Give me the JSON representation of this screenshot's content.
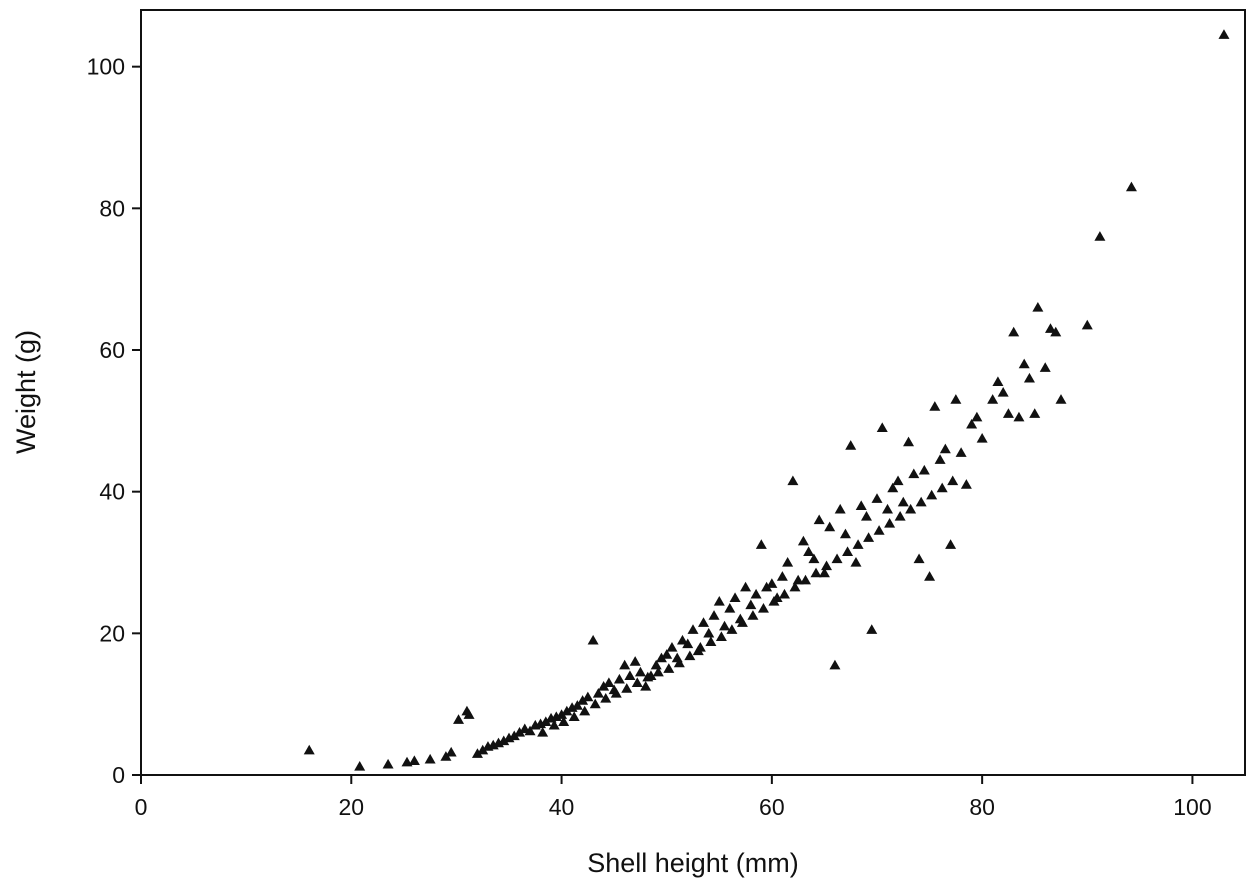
{
  "chart_data": {
    "type": "scatter",
    "title": "",
    "xlabel": "Shell height (mm)",
    "ylabel": "Weight (g)",
    "xlim": [
      0,
      105
    ],
    "ylim": [
      0,
      108
    ],
    "x_ticks": [
      "0",
      "20",
      "40",
      "60",
      "80",
      "100"
    ],
    "y_ticks": [
      "0",
      "20",
      "40",
      "60",
      "80",
      "100"
    ],
    "grid": false,
    "marker": "triangle",
    "marker_color": "#111111",
    "series": [
      {
        "points": [
          [
            16,
            3.5
          ],
          [
            20.8,
            1.2
          ],
          [
            23.5,
            1.5
          ],
          [
            25.3,
            1.8
          ],
          [
            26,
            2.0
          ],
          [
            27.5,
            2.2
          ],
          [
            29,
            2.6
          ],
          [
            29.5,
            3.2
          ],
          [
            30.2,
            7.8
          ],
          [
            31,
            9.0
          ],
          [
            31.2,
            8.5
          ],
          [
            32,
            3.0
          ],
          [
            32.5,
            3.5
          ],
          [
            33,
            4.0
          ],
          [
            33.5,
            4.2
          ],
          [
            34,
            4.5
          ],
          [
            34.5,
            4.8
          ],
          [
            35,
            5.2
          ],
          [
            35.5,
            5.5
          ],
          [
            36,
            6.0
          ],
          [
            36.5,
            6.5
          ],
          [
            37,
            6.2
          ],
          [
            37.5,
            7.0
          ],
          [
            38,
            7.2
          ],
          [
            38.5,
            7.5
          ],
          [
            39,
            8.0
          ],
          [
            39.5,
            8.2
          ],
          [
            40,
            8.5
          ],
          [
            40.5,
            9.0
          ],
          [
            41,
            9.5
          ],
          [
            41.5,
            9.8
          ],
          [
            42,
            10.5
          ],
          [
            42.5,
            11.0
          ],
          [
            43,
            19.0
          ],
          [
            43.5,
            11.5
          ],
          [
            44,
            12.5
          ],
          [
            44.5,
            13.0
          ],
          [
            45,
            12.0
          ],
          [
            45.5,
            13.5
          ],
          [
            46,
            15.5
          ],
          [
            46.5,
            14.0
          ],
          [
            47,
            16.0
          ],
          [
            47.5,
            14.5
          ],
          [
            48,
            12.5
          ],
          [
            48.5,
            14.0
          ],
          [
            49,
            15.5
          ],
          [
            49.5,
            16.5
          ],
          [
            50,
            17.0
          ],
          [
            50.5,
            18.0
          ],
          [
            51,
            16.5
          ],
          [
            51.5,
            19.0
          ],
          [
            52,
            18.5
          ],
          [
            52.5,
            20.5
          ],
          [
            53,
            17.5
          ],
          [
            53.5,
            21.5
          ],
          [
            54,
            20.0
          ],
          [
            54.5,
            22.5
          ],
          [
            55,
            24.5
          ],
          [
            55.5,
            21.0
          ],
          [
            56,
            23.5
          ],
          [
            56.5,
            25.0
          ],
          [
            57,
            22.0
          ],
          [
            57.5,
            26.5
          ],
          [
            58,
            24.0
          ],
          [
            58.5,
            25.5
          ],
          [
            59,
            32.5
          ],
          [
            59.5,
            26.5
          ],
          [
            60,
            27.0
          ],
          [
            60.5,
            25.0
          ],
          [
            61,
            28.0
          ],
          [
            61.5,
            30.0
          ],
          [
            62,
            41.5
          ],
          [
            62.5,
            27.5
          ],
          [
            63,
            33.0
          ],
          [
            63.5,
            31.5
          ],
          [
            64,
            30.5
          ],
          [
            64.5,
            36.0
          ],
          [
            65,
            28.5
          ],
          [
            65.5,
            35.0
          ],
          [
            66,
            15.5
          ],
          [
            66.5,
            37.5
          ],
          [
            67,
            34.0
          ],
          [
            67.5,
            46.5
          ],
          [
            68,
            30.0
          ],
          [
            68.5,
            38.0
          ],
          [
            69,
            36.5
          ],
          [
            69.5,
            20.5
          ],
          [
            70,
            39.0
          ],
          [
            70.5,
            49.0
          ],
          [
            71,
            37.5
          ],
          [
            71.5,
            40.5
          ],
          [
            72,
            41.5
          ],
          [
            72.5,
            38.5
          ],
          [
            73,
            47.0
          ],
          [
            73.5,
            42.5
          ],
          [
            74,
            30.5
          ],
          [
            74.5,
            43.0
          ],
          [
            75,
            28.0
          ],
          [
            75.5,
            52.0
          ],
          [
            76,
            44.5
          ],
          [
            76.5,
            46.0
          ],
          [
            77,
            32.5
          ],
          [
            77.5,
            53.0
          ],
          [
            78,
            45.5
          ],
          [
            78.5,
            41.0
          ],
          [
            79,
            49.5
          ],
          [
            79.5,
            50.5
          ],
          [
            80,
            47.5
          ],
          [
            81,
            53.0
          ],
          [
            81.5,
            55.5
          ],
          [
            82,
            54.0
          ],
          [
            82.5,
            51.0
          ],
          [
            83,
            62.5
          ],
          [
            83.5,
            50.5
          ],
          [
            84,
            58.0
          ],
          [
            84.5,
            56.0
          ],
          [
            85,
            51.0
          ],
          [
            85.3,
            66.0
          ],
          [
            86,
            57.5
          ],
          [
            86.5,
            63.0
          ],
          [
            87,
            62.5
          ],
          [
            87.5,
            53.0
          ],
          [
            90,
            63.5
          ],
          [
            91.2,
            76.0
          ],
          [
            94.2,
            83.0
          ],
          [
            103,
            104.5
          ],
          [
            38.2,
            6.0
          ],
          [
            39.3,
            7.0
          ],
          [
            40.2,
            7.5
          ],
          [
            41.2,
            8.2
          ],
          [
            42.2,
            9.0
          ],
          [
            43.2,
            10.0
          ],
          [
            44.2,
            10.8
          ],
          [
            45.2,
            11.5
          ],
          [
            46.2,
            12.2
          ],
          [
            47.2,
            13.0
          ],
          [
            48.2,
            13.8
          ],
          [
            49.2,
            14.5
          ],
          [
            50.2,
            15.0
          ],
          [
            51.2,
            15.8
          ],
          [
            52.2,
            16.8
          ],
          [
            53.2,
            18.0
          ],
          [
            54.2,
            18.8
          ],
          [
            55.2,
            19.5
          ],
          [
            56.2,
            20.5
          ],
          [
            57.2,
            21.5
          ],
          [
            58.2,
            22.5
          ],
          [
            59.2,
            23.5
          ],
          [
            60.2,
            24.5
          ],
          [
            61.2,
            25.5
          ],
          [
            62.2,
            26.5
          ],
          [
            63.2,
            27.5
          ],
          [
            64.2,
            28.5
          ],
          [
            65.2,
            29.5
          ],
          [
            66.2,
            30.5
          ],
          [
            67.2,
            31.5
          ],
          [
            68.2,
            32.5
          ],
          [
            69.2,
            33.5
          ],
          [
            70.2,
            34.5
          ],
          [
            71.2,
            35.5
          ],
          [
            72.2,
            36.5
          ],
          [
            73.2,
            37.5
          ],
          [
            74.2,
            38.5
          ],
          [
            75.2,
            39.5
          ],
          [
            76.2,
            40.5
          ],
          [
            77.2,
            41.5
          ]
        ]
      }
    ]
  }
}
